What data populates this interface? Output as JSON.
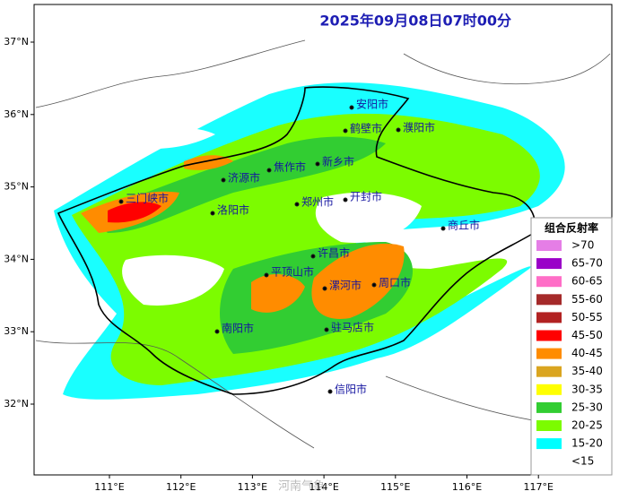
{
  "map": {
    "title": "2025年09月08日07时00分",
    "lat_ticks": [
      {
        "value": 37,
        "label": "37°N"
      },
      {
        "value": 36,
        "label": "36°N"
      },
      {
        "value": 35,
        "label": "35°N"
      },
      {
        "value": 34,
        "label": "34°N"
      },
      {
        "value": 33,
        "label": "33°N"
      },
      {
        "value": 32,
        "label": "32°N"
      }
    ],
    "lon_ticks": [
      {
        "value": 111,
        "label": "111°E"
      },
      {
        "value": 112,
        "label": "112°E"
      },
      {
        "value": 113,
        "label": "113°E"
      },
      {
        "value": 114,
        "label": "114°E"
      },
      {
        "value": 115,
        "label": "115°E"
      },
      {
        "value": 116,
        "label": "116°E"
      },
      {
        "value": 117,
        "label": "117°E"
      }
    ],
    "cities": [
      "安阳市",
      "鹤壁市",
      "濮阳市",
      "新乡市",
      "焦作市",
      "济源市",
      "三门峡市",
      "洛阳市",
      "郑州市",
      "开封市",
      "商丘市",
      "许昌市",
      "平顶山市",
      "漯河市",
      "周口市",
      "南阳市",
      "驻马店市",
      "信阳市"
    ],
    "legend": {
      "title": "组合反射率",
      "items": [
        {
          "label": ">70",
          "color": "#e57ee6"
        },
        {
          "label": "65-70",
          "color": "#9a00c8"
        },
        {
          "label": "60-65",
          "color": "#ff6ec7"
        },
        {
          "label": "55-60",
          "color": "#a52a2a"
        },
        {
          "label": "50-55",
          "color": "#b22222"
        },
        {
          "label": "45-50",
          "color": "#ff0000"
        },
        {
          "label": "40-45",
          "color": "#ff8c00"
        },
        {
          "label": "35-40",
          "color": "#daa520"
        },
        {
          "label": "30-35",
          "color": "#ffff00"
        },
        {
          "label": "25-30",
          "color": "#32cd32"
        },
        {
          "label": "20-25",
          "color": "#7cfc00"
        },
        {
          "label": "15-20",
          "color": "#00ffff"
        },
        {
          "label": "<15",
          "color": "#ffffff"
        }
      ]
    },
    "watermark": "河南气象"
  }
}
